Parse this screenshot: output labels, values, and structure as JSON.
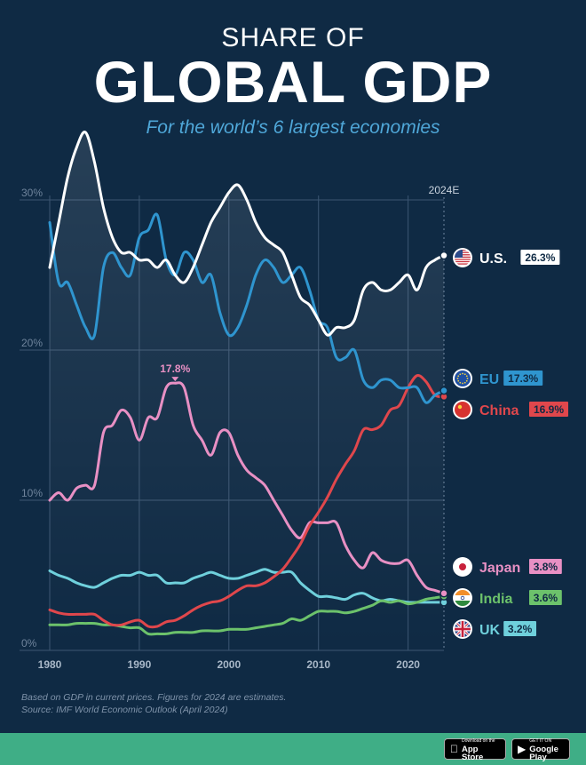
{
  "header": {
    "title_top": "SHARE OF",
    "title_main": "GLOBAL GDP",
    "subtitle": "For the world’s 6 largest economies"
  },
  "footer": {
    "note_line1": "Based on GDP in current prices. Figures for 2024 are estimates.",
    "note_line2": "Source: IMF World Economic Outlook (April 2024)",
    "app_store": {
      "small": "Download on the",
      "big": "App Store",
      "icon": "apple-icon"
    },
    "google_play": {
      "small": "GET IT ON",
      "big": "Google Play",
      "icon": "play-icon"
    }
  },
  "colors": {
    "background": "#0f2a44",
    "US": "#ffffff",
    "EU": "#2f95cf",
    "China": "#e0474c",
    "Japan": "#e890c4",
    "India": "#6cc26b",
    "UK": "#6fd0dc",
    "footer": "#3fae86"
  },
  "chart_data": {
    "type": "line",
    "title": "GLOBAL GDP",
    "ylabel": "",
    "xlabel": "",
    "ylim": [
      0,
      30
    ],
    "xlim": [
      1980,
      2024
    ],
    "x_ticks": [
      "1980",
      "1990",
      "2000",
      "2010",
      "2020"
    ],
    "y_ticks": [
      "0%",
      "10%",
      "20%",
      "30%"
    ],
    "projection_marker": "2024E",
    "grid": true,
    "x": [
      1980,
      1981,
      1982,
      1983,
      1984,
      1985,
      1986,
      1987,
      1988,
      1989,
      1990,
      1991,
      1992,
      1993,
      1994,
      1995,
      1996,
      1997,
      1998,
      1999,
      2000,
      2001,
      2002,
      2003,
      2004,
      2005,
      2006,
      2007,
      2008,
      2009,
      2010,
      2011,
      2012,
      2013,
      2014,
      2015,
      2016,
      2017,
      2018,
      2019,
      2020,
      2021,
      2022,
      2023,
      2024
    ],
    "series": [
      {
        "name": "U.S.",
        "key": "US",
        "label_value": "26.3%",
        "flag": "us-flag-icon",
        "values": [
          25.5,
          28.5,
          31.5,
          33.5,
          34.5,
          32.5,
          29.5,
          27.5,
          26.5,
          26.5,
          26.0,
          26.0,
          25.5,
          26.0,
          25.0,
          24.5,
          25.5,
          27.0,
          28.5,
          29.5,
          30.5,
          31.0,
          30.0,
          28.5,
          27.5,
          27.0,
          26.5,
          25.0,
          23.5,
          23.0,
          22.0,
          21.0,
          21.5,
          21.5,
          22.0,
          24.0,
          24.5,
          24.0,
          24.0,
          24.5,
          25.0,
          24.0,
          25.5,
          26.0,
          26.3
        ]
      },
      {
        "name": "EU",
        "key": "EU",
        "label_value": "17.3%",
        "flag": "eu-flag-icon",
        "values": [
          28.5,
          24.5,
          24.5,
          23.0,
          21.5,
          21.0,
          25.5,
          26.5,
          25.5,
          25.0,
          27.5,
          28.0,
          29.0,
          26.0,
          25.0,
          26.5,
          26.0,
          24.5,
          25.0,
          22.5,
          21.0,
          21.5,
          23.0,
          25.0,
          26.0,
          25.5,
          24.5,
          25.0,
          25.5,
          24.0,
          22.0,
          21.5,
          19.5,
          19.5,
          20.0,
          18.0,
          17.5,
          18.0,
          18.0,
          17.5,
          17.5,
          17.5,
          16.5,
          17.0,
          17.3
        ]
      },
      {
        "name": "China",
        "key": "China",
        "label_value": "16.9%",
        "flag": "china-flag-icon",
        "values": [
          2.7,
          2.5,
          2.4,
          2.4,
          2.4,
          2.4,
          2.0,
          1.7,
          1.7,
          1.9,
          2.0,
          1.6,
          1.6,
          1.9,
          2.0,
          2.3,
          2.7,
          3.0,
          3.2,
          3.3,
          3.6,
          4.0,
          4.3,
          4.3,
          4.5,
          4.9,
          5.4,
          6.2,
          7.1,
          8.3,
          9.2,
          10.2,
          11.4,
          12.4,
          13.3,
          14.7,
          14.7,
          15.0,
          16.0,
          16.3,
          17.5,
          18.3,
          17.9,
          17.0,
          16.9
        ]
      },
      {
        "name": "Japan",
        "key": "Japan",
        "label_value": "3.8%",
        "flag": "japan-flag-icon",
        "values": [
          10.0,
          10.5,
          10.0,
          10.8,
          11.0,
          11.0,
          14.5,
          15.0,
          16.0,
          15.5,
          14.0,
          15.5,
          15.5,
          17.5,
          17.8,
          17.5,
          15.0,
          14.0,
          13.0,
          14.5,
          14.5,
          13.0,
          12.0,
          11.5,
          11.0,
          10.0,
          9.0,
          8.0,
          7.5,
          8.5,
          8.5,
          8.5,
          8.5,
          7.0,
          6.0,
          5.5,
          6.5,
          6.0,
          5.8,
          5.8,
          6.0,
          5.0,
          4.2,
          4.0,
          3.8
        ]
      },
      {
        "name": "India",
        "key": "India",
        "label_value": "3.6%",
        "flag": "india-flag-icon",
        "values": [
          1.7,
          1.7,
          1.7,
          1.8,
          1.8,
          1.8,
          1.7,
          1.7,
          1.6,
          1.5,
          1.5,
          1.1,
          1.1,
          1.1,
          1.2,
          1.2,
          1.2,
          1.3,
          1.3,
          1.3,
          1.4,
          1.4,
          1.4,
          1.5,
          1.6,
          1.7,
          1.8,
          2.1,
          2.0,
          2.3,
          2.6,
          2.6,
          2.6,
          2.5,
          2.6,
          2.8,
          3.0,
          3.3,
          3.2,
          3.3,
          3.1,
          3.2,
          3.4,
          3.5,
          3.6
        ]
      },
      {
        "name": "UK",
        "key": "UK",
        "label_value": "3.2%",
        "flag": "uk-flag-icon",
        "values": [
          5.3,
          5.0,
          4.8,
          4.5,
          4.3,
          4.2,
          4.5,
          4.8,
          5.0,
          5.0,
          5.2,
          5.0,
          5.0,
          4.5,
          4.5,
          4.5,
          4.8,
          5.0,
          5.2,
          5.0,
          4.8,
          4.8,
          5.0,
          5.2,
          5.4,
          5.2,
          5.2,
          5.2,
          4.5,
          4.0,
          3.6,
          3.6,
          3.5,
          3.4,
          3.7,
          3.8,
          3.5,
          3.3,
          3.4,
          3.3,
          3.2,
          3.2,
          3.2,
          3.2,
          3.2
        ]
      }
    ],
    "annotations": [
      {
        "x": 1994,
        "y": 17.8,
        "text": "17.8%"
      }
    ]
  }
}
